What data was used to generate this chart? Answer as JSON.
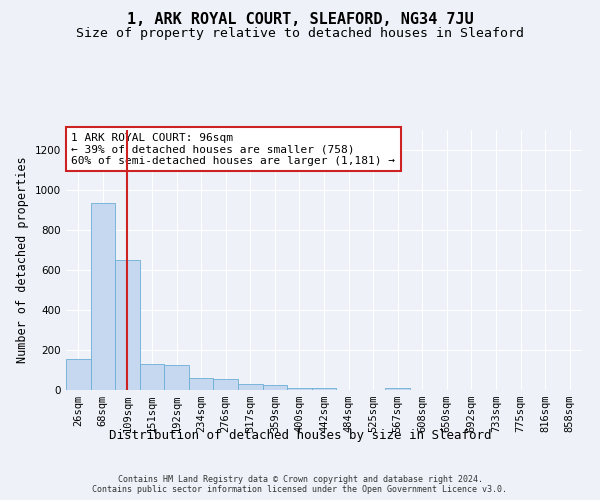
{
  "title": "1, ARK ROYAL COURT, SLEAFORD, NG34 7JU",
  "subtitle": "Size of property relative to detached houses in Sleaford",
  "xlabel": "Distribution of detached houses by size in Sleaford",
  "ylabel": "Number of detached properties",
  "footer_line1": "Contains HM Land Registry data © Crown copyright and database right 2024.",
  "footer_line2": "Contains public sector information licensed under the Open Government Licence v3.0.",
  "categories": [
    "26sqm",
    "68sqm",
    "109sqm",
    "151sqm",
    "192sqm",
    "234sqm",
    "276sqm",
    "317sqm",
    "359sqm",
    "400sqm",
    "442sqm",
    "484sqm",
    "525sqm",
    "567sqm",
    "608sqm",
    "650sqm",
    "692sqm",
    "733sqm",
    "775sqm",
    "816sqm",
    "858sqm"
  ],
  "values": [
    155,
    935,
    650,
    130,
    125,
    58,
    55,
    30,
    25,
    10,
    10,
    0,
    0,
    12,
    0,
    0,
    0,
    0,
    0,
    0,
    0
  ],
  "bar_color": "#c5d8f0",
  "bar_edge_color": "#6aaed6",
  "vline_x_index": 2,
  "vline_color": "#cc2222",
  "vline_linewidth": 1.5,
  "annotation_text": "1 ARK ROYAL COURT: 96sqm\n← 39% of detached houses are smaller (758)\n60% of semi-detached houses are larger (1,181) →",
  "annotation_box_facecolor": "#ffffff",
  "annotation_box_edgecolor": "#cc2222",
  "ylim": [
    0,
    1300
  ],
  "yticks": [
    0,
    200,
    400,
    600,
    800,
    1000,
    1200
  ],
  "background_color": "#eef2f8",
  "grid_color": "#ffffff",
  "title_fontsize": 11,
  "subtitle_fontsize": 9.5,
  "ylabel_fontsize": 8.5,
  "xlabel_fontsize": 9,
  "tick_fontsize": 7.5,
  "annotation_fontsize": 8,
  "footer_fontsize": 6
}
